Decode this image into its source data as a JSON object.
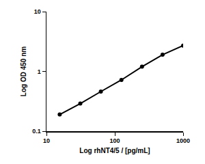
{
  "chart_data": {
    "type": "line",
    "x_label": "Log rhNT4/5 / [pg/mL]",
    "y_label": "Log OD 450 nm",
    "x": [
      15.625,
      31.25,
      62.5,
      125,
      250,
      500,
      1000
    ],
    "values": [
      0.19,
      0.29,
      0.46,
      0.72,
      1.2,
      1.9,
      2.7
    ],
    "color": "#000000",
    "marker": "circle",
    "xlim": [
      10,
      1000
    ],
    "ylim": [
      0.1,
      10
    ],
    "xticks": [
      10,
      100,
      1000
    ],
    "yticks": [
      0.1,
      1,
      10
    ],
    "log": true,
    "grid": false
  }
}
